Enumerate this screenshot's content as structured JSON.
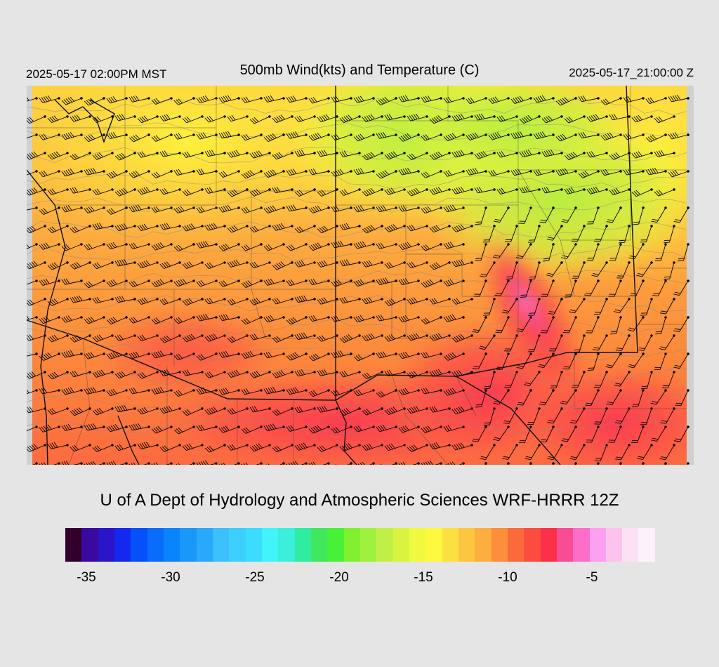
{
  "header": {
    "local_time": "2025-05-17 02:00PM MST",
    "title": "500mb Wind(kts) and Temperature (C)",
    "valid_time": "2025-05-17_21:00:00 Z"
  },
  "credit": "U of A Dept of Hydrology and Atmospheric Sciences WRF-HRRR 12Z",
  "colorbar": {
    "colors": [
      "#33002e",
      "#3a0aa0",
      "#2c14c8",
      "#1428ee",
      "#0550f8",
      "#0a6cfa",
      "#0a84fa",
      "#1a98fa",
      "#2aa8fa",
      "#3cc0fc",
      "#3ccffc",
      "#3cdcfc",
      "#40f4fa",
      "#3ceedc",
      "#30eca0",
      "#40e860",
      "#48f038",
      "#80f030",
      "#a0f040",
      "#c0f048",
      "#d8f440",
      "#f0f840",
      "#fff840",
      "#fae040",
      "#fcc640",
      "#fcae40",
      "#fc8e3c",
      "#fc6a3c",
      "#fc4c40",
      "#fc3048",
      "#f84c96",
      "#fc6ec8",
      "#fca0f0",
      "#fcc4ec",
      "#fce0f4",
      "#fcf2fa"
    ],
    "tick_labels": [
      "-35",
      "-30",
      "-25",
      "-20",
      "-15",
      "-10",
      "-5"
    ],
    "tick_values": [
      -35,
      -30,
      -25,
      -20,
      -15,
      -10,
      -5
    ],
    "value_range": [
      -36,
      -1
    ]
  },
  "map": {
    "type": "heatmap",
    "variable": "500mb temperature (C) with wind barbs (kts)",
    "temperature_range_c": [
      -18,
      -5
    ],
    "coldest_region": "north-central (green, about -18 to -17 C)",
    "warmest_region": "south-central and southeast (red to pink, about -9 to -5 C)",
    "features": [
      "state boundaries",
      "county boundaries",
      "international border",
      "temperature contours",
      "wind barbs"
    ],
    "barb_color": "#000000",
    "border_color": "#000000"
  }
}
